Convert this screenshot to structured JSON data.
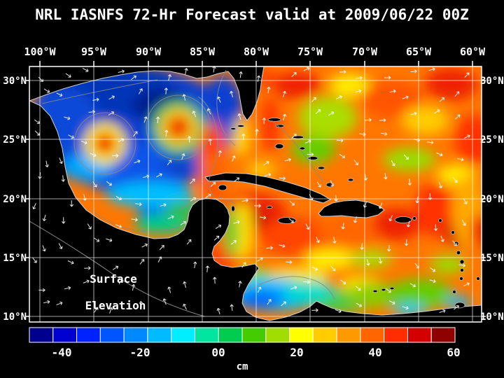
{
  "title": "NRL IASNFS  72-Hr Forecast valid at 2009/06/22 00Z",
  "map": {
    "overlay_label": {
      "line1": "Surface",
      "line2": "Elevation"
    },
    "x_ticks": [
      "100°W",
      "95°W",
      "90°W",
      "85°W",
      "80°W",
      "75°W",
      "70°W",
      "65°W",
      "60°W"
    ],
    "y_ticks": [
      "30°N",
      "25°N",
      "20°N",
      "15°N",
      "10°N"
    ]
  },
  "colorbar": {
    "labels": [
      "-40",
      "-20",
      "00",
      "20",
      "40",
      "60"
    ],
    "unit": "cm",
    "segments": 18,
    "colors": [
      "#00008f",
      "#0000d0",
      "#0022ff",
      "#0055ff",
      "#0088ff",
      "#00bbff",
      "#00eeff",
      "#00e6a0",
      "#00cc50",
      "#44cc00",
      "#a0dd00",
      "#ffff00",
      "#ffcc00",
      "#ff9900",
      "#ff6600",
      "#ff2d00",
      "#d40000",
      "#8f0000"
    ]
  },
  "chart_data": {
    "type": "heatmap",
    "title": "NRL IASNFS 72-Hr Forecast valid at 2009/06/22 00Z",
    "variable": "Surface Elevation",
    "units": "cm",
    "x_axis": {
      "label": "longitude",
      "ticks": [
        "100°W",
        "95°W",
        "90°W",
        "85°W",
        "80°W",
        "75°W",
        "70°W",
        "65°W",
        "60°W"
      ]
    },
    "y_axis": {
      "label": "latitude",
      "ticks": [
        "30°N",
        "25°N",
        "20°N",
        "15°N",
        "10°N"
      ]
    },
    "colorbar_ticks_cm": [
      -40,
      -20,
      0,
      20,
      40,
      60
    ],
    "summary": {
      "low_elevation_region": "Gulf of Mexico interior, blue, about -40 to -10 cm, with two red anticyclonic eddies near 95W/25N and 88W/26N",
      "high_elevation_region": "Caribbean Sea and western Atlantic, orange/red, about +10 to +50 cm",
      "secondary_low_region": "Southwest Caribbean / Colombia Basin, cyan-blue, about -20 to 0 cm"
    },
    "overlays": [
      "white surface current vectors",
      "gray contour lines",
      "white 5-degree lat/lon graticule",
      "black land mask with light coastlines"
    ]
  }
}
